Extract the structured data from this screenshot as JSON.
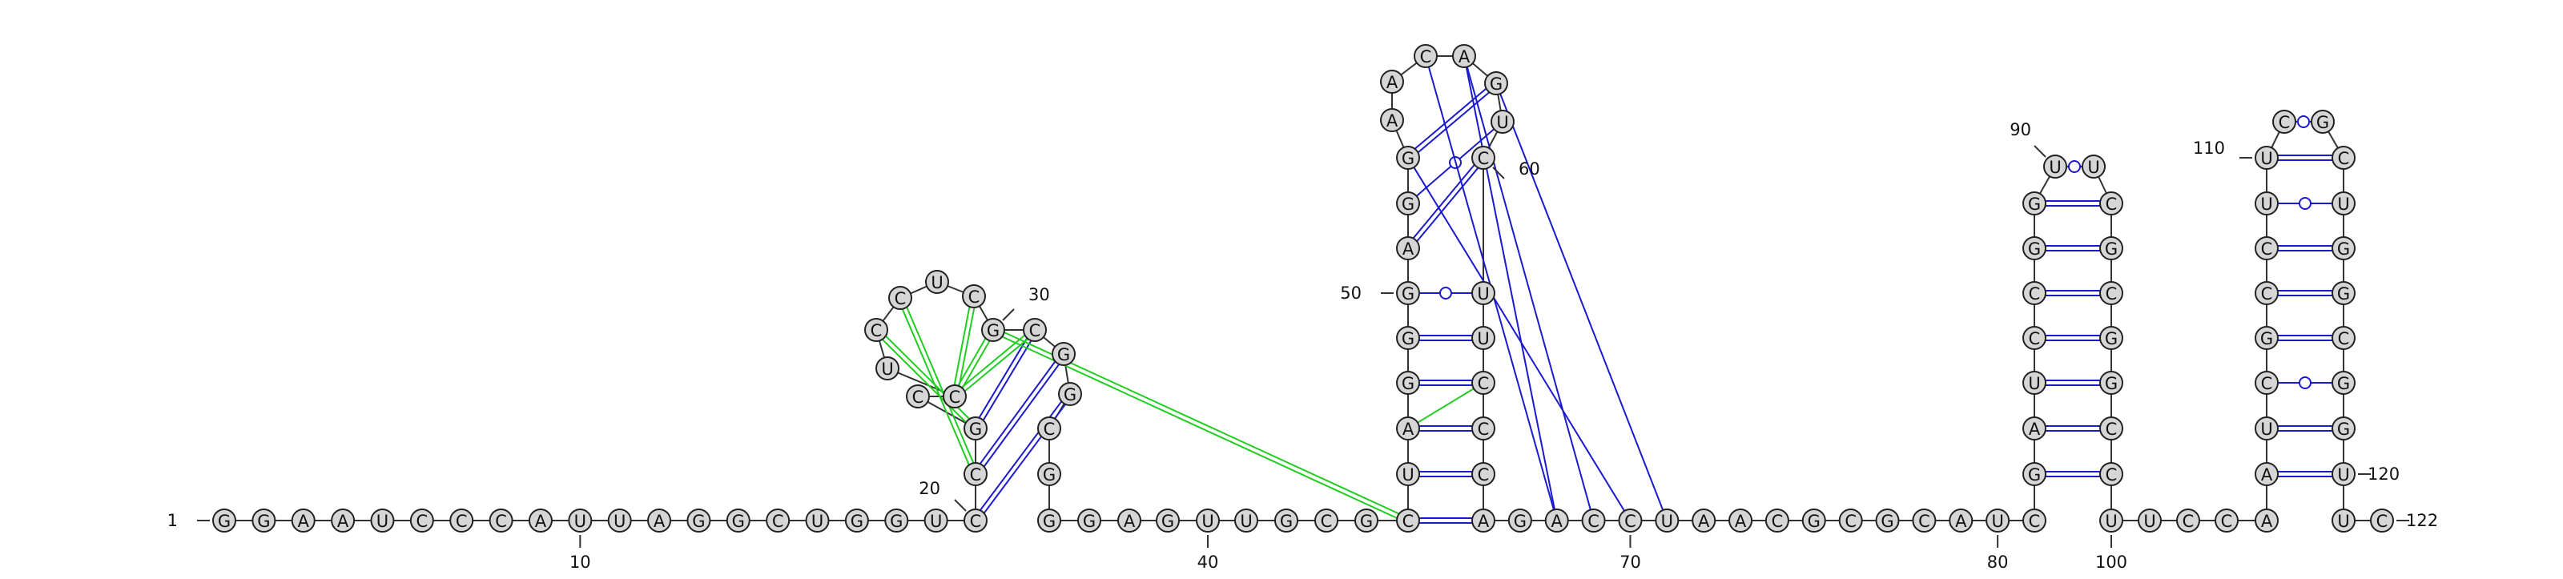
{
  "diagram": {
    "type": "rna-secondary-structure",
    "colors": {
      "nucleotide_fill": "#d6d6d6",
      "nucleotide_stroke": "#222222",
      "backbone": "#333333",
      "canonical_pair": "#1a1acc",
      "pseudoknot_pair": "#22cc22",
      "long_range_pair": "#1a1acc"
    },
    "sequence": [
      {
        "i": 1,
        "n": "G"
      },
      {
        "i": 2,
        "n": "G"
      },
      {
        "i": 3,
        "n": "A"
      },
      {
        "i": 4,
        "n": "A"
      },
      {
        "i": 5,
        "n": "U"
      },
      {
        "i": 6,
        "n": "C"
      },
      {
        "i": 7,
        "n": "C"
      },
      {
        "i": 8,
        "n": "C"
      },
      {
        "i": 9,
        "n": "A"
      },
      {
        "i": 10,
        "n": "U"
      },
      {
        "i": 11,
        "n": "U"
      },
      {
        "i": 12,
        "n": "A"
      },
      {
        "i": 13,
        "n": "G"
      },
      {
        "i": 14,
        "n": "G"
      },
      {
        "i": 15,
        "n": "C"
      },
      {
        "i": 16,
        "n": "U"
      },
      {
        "i": 17,
        "n": "G"
      },
      {
        "i": 18,
        "n": "G"
      },
      {
        "i": 19,
        "n": "U"
      },
      {
        "i": 20,
        "n": "C"
      },
      {
        "i": 21,
        "n": "C"
      },
      {
        "i": 22,
        "n": "G"
      },
      {
        "i": 23,
        "n": "C"
      },
      {
        "i": 24,
        "n": "C"
      },
      {
        "i": 25,
        "n": "U"
      },
      {
        "i": 26,
        "n": "C"
      },
      {
        "i": 27,
        "n": "C"
      },
      {
        "i": 28,
        "n": "U"
      },
      {
        "i": 29,
        "n": "C"
      },
      {
        "i": 30,
        "n": "G"
      },
      {
        "i": 31,
        "n": "C"
      },
      {
        "i": 32,
        "n": "G"
      },
      {
        "i": 33,
        "n": "G"
      },
      {
        "i": 34,
        "n": "C"
      },
      {
        "i": 35,
        "n": "G"
      },
      {
        "i": 36,
        "n": "G"
      },
      {
        "i": 37,
        "n": "G"
      },
      {
        "i": 38,
        "n": "A"
      },
      {
        "i": 39,
        "n": "G"
      },
      {
        "i": 40,
        "n": "U"
      },
      {
        "i": 41,
        "n": "U"
      },
      {
        "i": 42,
        "n": "G"
      },
      {
        "i": 43,
        "n": "C"
      },
      {
        "i": 44,
        "n": "G"
      },
      {
        "i": 45,
        "n": "C"
      },
      {
        "i": 46,
        "n": "U"
      },
      {
        "i": 47,
        "n": "A"
      },
      {
        "i": 48,
        "n": "G"
      },
      {
        "i": 49,
        "n": "G"
      },
      {
        "i": 50,
        "n": "G"
      },
      {
        "i": 51,
        "n": "A"
      },
      {
        "i": 52,
        "n": "G"
      },
      {
        "i": 53,
        "n": "G"
      },
      {
        "i": 54,
        "n": "A"
      },
      {
        "i": 55,
        "n": "A"
      },
      {
        "i": 56,
        "n": "C"
      },
      {
        "i": 57,
        "n": "A"
      },
      {
        "i": 58,
        "n": "G"
      },
      {
        "i": 59,
        "n": "U"
      },
      {
        "i": 60,
        "n": "C"
      },
      {
        "i": 61,
        "n": "U"
      },
      {
        "i": 62,
        "n": "U"
      },
      {
        "i": 63,
        "n": "C"
      },
      {
        "i": 64,
        "n": "C"
      },
      {
        "i": 65,
        "n": "C"
      },
      {
        "i": 66,
        "n": "A"
      },
      {
        "i": 67,
        "n": "G"
      },
      {
        "i": 68,
        "n": "A"
      },
      {
        "i": 69,
        "n": "C"
      },
      {
        "i": 70,
        "n": "C"
      },
      {
        "i": 71,
        "n": "U"
      },
      {
        "i": 72,
        "n": "A"
      },
      {
        "i": 73,
        "n": "A"
      },
      {
        "i": 74,
        "n": "C"
      },
      {
        "i": 75,
        "n": "G"
      },
      {
        "i": 76,
        "n": "C"
      },
      {
        "i": 77,
        "n": "G"
      },
      {
        "i": 78,
        "n": "C"
      },
      {
        "i": 79,
        "n": "A"
      },
      {
        "i": 80,
        "n": "U"
      },
      {
        "i": 81,
        "n": "C"
      },
      {
        "i": 82,
        "n": "G"
      },
      {
        "i": 83,
        "n": "A"
      },
      {
        "i": 84,
        "n": "U"
      },
      {
        "i": 85,
        "n": "C"
      },
      {
        "i": 86,
        "n": "C"
      },
      {
        "i": 87,
        "n": "G"
      },
      {
        "i": 88,
        "n": "G"
      },
      {
        "i": 89,
        "n": "U"
      },
      {
        "i": 90,
        "n": "U"
      },
      {
        "i": 91,
        "n": "C"
      },
      {
        "i": 92,
        "n": "G"
      },
      {
        "i": 93,
        "n": "C"
      },
      {
        "i": 94,
        "n": "G"
      },
      {
        "i": 95,
        "n": "G"
      },
      {
        "i": 96,
        "n": "C"
      },
      {
        "i": 97,
        "n": "C"
      },
      {
        "i": 98,
        "n": "U"
      },
      {
        "i": 99,
        "n": "U"
      },
      {
        "i": 100,
        "n": "C"
      },
      {
        "i": 101,
        "n": "C"
      },
      {
        "i": 102,
        "n": "A"
      },
      {
        "i": 103,
        "n": "A"
      },
      {
        "i": 104,
        "n": "U"
      },
      {
        "i": 105,
        "n": "C"
      },
      {
        "i": 106,
        "n": "G"
      },
      {
        "i": 107,
        "n": "C"
      },
      {
        "i": 108,
        "n": "C"
      },
      {
        "i": 109,
        "n": "U"
      },
      {
        "i": 110,
        "n": "U"
      },
      {
        "i": 111,
        "n": "C"
      },
      {
        "i": 112,
        "n": "G"
      },
      {
        "i": 113,
        "n": "C"
      },
      {
        "i": 114,
        "n": "U"
      },
      {
        "i": 115,
        "n": "G"
      },
      {
        "i": 116,
        "n": "G"
      },
      {
        "i": 117,
        "n": "C"
      },
      {
        "i": 118,
        "n": "G"
      },
      {
        "i": 119,
        "n": "G"
      },
      {
        "i": 120,
        "n": "U"
      },
      {
        "i": 121,
        "n": "U"
      },
      {
        "i": 122,
        "n": "C"
      }
    ],
    "position_labels": [
      "1",
      "10",
      "20",
      "30",
      "40",
      "50",
      "60",
      "70",
      "80",
      "90",
      "100",
      "110",
      "120",
      "122"
    ],
    "pairs": [
      {
        "a": 20,
        "b": 33,
        "type": "canonical"
      },
      {
        "a": 21,
        "b": 32,
        "type": "canonical"
      },
      {
        "a": 22,
        "b": 31,
        "type": "canonical"
      },
      {
        "a": 24,
        "b": 30,
        "type": "pseudoknot"
      },
      {
        "a": 24,
        "b": 29,
        "type": "pseudoknot"
      },
      {
        "a": 24,
        "b": 31,
        "type": "pseudoknot"
      },
      {
        "a": 26,
        "b": 22,
        "type": "pseudoknot"
      },
      {
        "a": 21,
        "b": 27,
        "type": "pseudoknot"
      },
      {
        "a": 30,
        "b": 45,
        "type": "pseudoknot"
      },
      {
        "a": 45,
        "b": 66,
        "type": "canonical"
      },
      {
        "a": 46,
        "b": 65,
        "type": "canonical"
      },
      {
        "a": 47,
        "b": 64,
        "type": "canonical"
      },
      {
        "a": 48,
        "b": 63,
        "type": "canonical"
      },
      {
        "a": 49,
        "b": 62,
        "type": "canonical"
      },
      {
        "a": 50,
        "b": 61,
        "type": "wobble"
      },
      {
        "a": 51,
        "b": 60,
        "type": "canonical"
      },
      {
        "a": 52,
        "b": 59,
        "type": "wobble"
      },
      {
        "a": 53,
        "b": 58,
        "type": "canonical"
      },
      {
        "a": 63,
        "b": 47,
        "type": "pseudoknot-line"
      },
      {
        "a": 56,
        "b": 68,
        "type": "long-range"
      },
      {
        "a": 57,
        "b": 68,
        "type": "long-range"
      },
      {
        "a": 57,
        "b": 69,
        "type": "long-range"
      },
      {
        "a": 58,
        "b": 71,
        "type": "long-range"
      },
      {
        "a": 53,
        "b": 70,
        "type": "long-range"
      },
      {
        "a": 82,
        "b": 97,
        "type": "canonical"
      },
      {
        "a": 83,
        "b": 96,
        "type": "canonical"
      },
      {
        "a": 84,
        "b": 95,
        "type": "canonical"
      },
      {
        "a": 85,
        "b": 94,
        "type": "canonical"
      },
      {
        "a": 86,
        "b": 93,
        "type": "canonical"
      },
      {
        "a": 87,
        "b": 92,
        "type": "canonical"
      },
      {
        "a": 88,
        "b": 91,
        "type": "canonical"
      },
      {
        "a": 89,
        "b": 90,
        "type": "wobble"
      },
      {
        "a": 103,
        "b": 120,
        "type": "canonical"
      },
      {
        "a": 104,
        "b": 119,
        "type": "canonical"
      },
      {
        "a": 105,
        "b": 118,
        "type": "wobble"
      },
      {
        "a": 106,
        "b": 117,
        "type": "canonical"
      },
      {
        "a": 107,
        "b": 116,
        "type": "canonical"
      },
      {
        "a": 108,
        "b": 115,
        "type": "canonical"
      },
      {
        "a": 109,
        "b": 114,
        "type": "wobble"
      },
      {
        "a": 110,
        "b": 113,
        "type": "canonical"
      },
      {
        "a": 111,
        "b": 112,
        "type": "wobble"
      }
    ]
  }
}
